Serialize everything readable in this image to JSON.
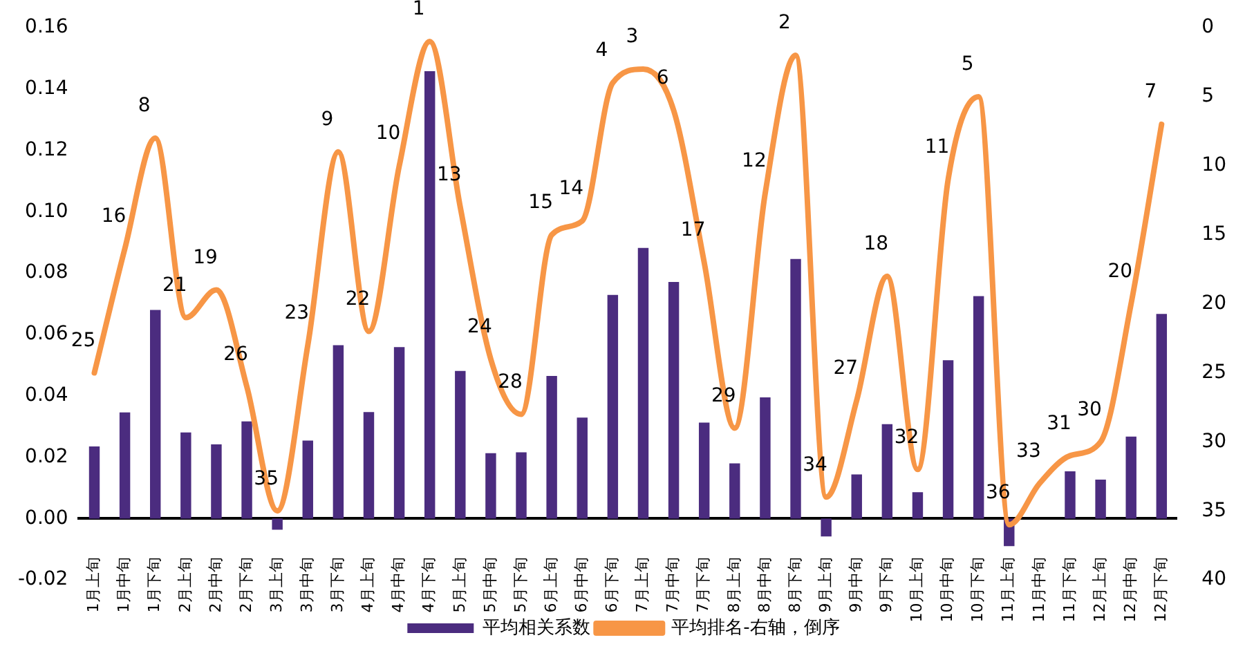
{
  "chart_data": {
    "type": "bar",
    "categories": [
      "1月上旬",
      "1月中旬",
      "1月下旬",
      "2月上旬",
      "2月中旬",
      "2月下旬",
      "3月上旬",
      "3月中旬",
      "3月下旬",
      "4月上旬",
      "4月中旬",
      "4月下旬",
      "5月上旬",
      "5月中旬",
      "5月下旬",
      "6月上旬",
      "6月中旬",
      "6月下旬",
      "7月上旬",
      "7月中旬",
      "7月下旬",
      "8月上旬",
      "8月中旬",
      "8月下旬",
      "9月上旬",
      "9月中旬",
      "9月下旬",
      "10月上旬",
      "10月中旬",
      "10月下旬",
      "11月上旬",
      "11月中旬",
      "11月下旬",
      "12月上旬",
      "12月中旬",
      "12月下旬"
    ],
    "series": [
      {
        "name": "平均相关系数",
        "color": "#4b2c7f",
        "values": [
          0.0235,
          0.0346,
          0.068,
          0.0281,
          0.0242,
          0.0317,
          -0.0036,
          0.0254,
          0.0565,
          0.0347,
          0.0559,
          0.1458,
          0.0481,
          0.0213,
          0.0216,
          0.0465,
          0.0329,
          0.0729,
          0.0882,
          0.0771,
          0.0313,
          0.018,
          0.0395,
          0.0846,
          -0.0058,
          0.0144,
          0.0308,
          0.0086,
          0.0516,
          0.0725,
          -0.009,
          0,
          0.0154,
          0.0127,
          0.0267,
          0.0667
        ]
      },
      {
        "name": "平均排名-右轴，倒序",
        "type": "line",
        "axis": "y2",
        "color": "#f79646",
        "data_labels": true,
        "values": [
          25,
          16,
          8,
          21,
          19,
          26,
          35,
          23,
          9,
          22,
          10,
          1,
          13,
          24,
          28,
          15,
          14,
          4,
          3,
          6,
          17,
          29,
          12,
          2,
          34,
          27,
          18,
          32,
          11,
          5,
          36,
          33,
          31,
          30,
          20,
          7
        ]
      }
    ],
    "ylim": [
      -0.02,
      0.16
    ],
    "yticks": [
      {
        "value": -0.02,
        "label": "-0.02"
      },
      {
        "value": 0,
        "label": "0.00"
      },
      {
        "value": 0.02,
        "label": "0.02"
      },
      {
        "value": 0.04,
        "label": "0.04"
      },
      {
        "value": 0.06,
        "label": "0.06"
      },
      {
        "value": 0.08,
        "label": "0.08"
      },
      {
        "value": 0.1,
        "label": "0.10"
      },
      {
        "value": 0.12,
        "label": "0.12"
      },
      {
        "value": 0.14,
        "label": "0.14"
      },
      {
        "value": 0.16,
        "label": "0.16"
      }
    ],
    "y2lim": [
      40,
      0
    ],
    "y2ticks": [
      0,
      5,
      10,
      15,
      20,
      25,
      30,
      35,
      40
    ],
    "grid": false,
    "legend": "bottom",
    "marker": "none"
  }
}
